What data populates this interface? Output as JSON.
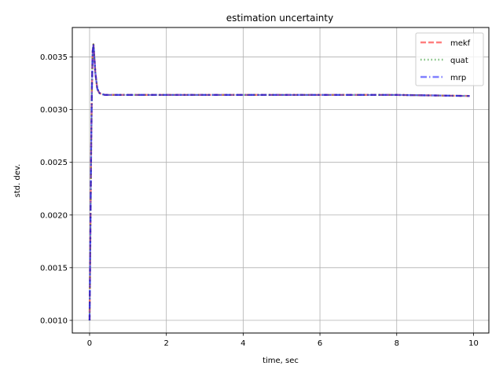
{
  "chart_data": {
    "type": "line",
    "title": "estimation uncertainty",
    "xlabel": "time, sec",
    "ylabel": "std. dev.",
    "xlim": [
      -0.45,
      10.4
    ],
    "ylim": [
      0.00088,
      0.00378
    ],
    "xticks": [
      0,
      2,
      4,
      6,
      8,
      10
    ],
    "xtick_labels": [
      "0",
      "2",
      "4",
      "6",
      "8",
      "10"
    ],
    "yticks": [
      0.001,
      0.0015,
      0.002,
      0.0025,
      0.003,
      0.0035
    ],
    "ytick_labels": [
      "0.0010",
      "0.0015",
      "0.0020",
      "0.0025",
      "0.0030",
      "0.0035"
    ],
    "grid": true,
    "legend_position": "top-right",
    "series": [
      {
        "name": "mekf",
        "color": "#ff0000",
        "style": "dashed",
        "x": [
          0.0,
          0.02,
          0.04,
          0.06,
          0.08,
          0.1,
          0.12,
          0.15,
          0.2,
          0.25,
          0.3,
          0.4,
          0.6,
          1.0,
          2.0,
          4.0,
          6.0,
          8.0,
          9.9
        ],
        "values": [
          0.001,
          0.0018,
          0.0026,
          0.0032,
          0.00355,
          0.00362,
          0.00352,
          0.00335,
          0.0032,
          0.00316,
          0.00315,
          0.00314,
          0.00314,
          0.00314,
          0.00314,
          0.00314,
          0.00314,
          0.00314,
          0.00313
        ]
      },
      {
        "name": "quat",
        "color": "#008000",
        "style": "dotted",
        "x": [
          0.0,
          0.02,
          0.04,
          0.06,
          0.08,
          0.1,
          0.12,
          0.15,
          0.2,
          0.25,
          0.3,
          0.4,
          0.6,
          1.0,
          2.0,
          4.0,
          6.0,
          8.0,
          9.9
        ],
        "values": [
          0.001,
          0.0018,
          0.0026,
          0.0032,
          0.00355,
          0.00362,
          0.00352,
          0.00335,
          0.0032,
          0.00316,
          0.00315,
          0.00314,
          0.00314,
          0.00314,
          0.00314,
          0.00314,
          0.00314,
          0.00314,
          0.00313
        ]
      },
      {
        "name": "mrp",
        "color": "#0000ff",
        "style": "dashdot",
        "x": [
          0.0,
          0.02,
          0.04,
          0.06,
          0.08,
          0.1,
          0.12,
          0.15,
          0.2,
          0.25,
          0.3,
          0.4,
          0.6,
          1.0,
          2.0,
          4.0,
          6.0,
          8.0,
          9.9
        ],
        "values": [
          0.001,
          0.0018,
          0.0026,
          0.0032,
          0.00355,
          0.00362,
          0.00352,
          0.00335,
          0.0032,
          0.00316,
          0.00315,
          0.00314,
          0.00314,
          0.00314,
          0.00314,
          0.00314,
          0.00314,
          0.00314,
          0.00313
        ]
      }
    ]
  }
}
